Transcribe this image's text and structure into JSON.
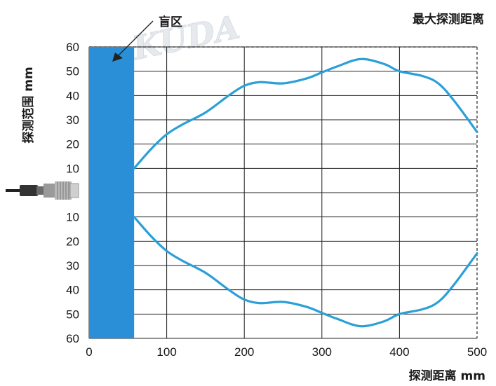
{
  "watermark": "KUDA",
  "colors": {
    "curve": "#2a9fd8",
    "blind_zone": "#2a8fd6",
    "grid": "#222222",
    "text": "#1a1a1a"
  },
  "icons": {
    "sensor": "sensor-probe-icon"
  },
  "chart_data": {
    "type": "line",
    "title": "最大探测距离",
    "xlabel": "探测距离 mm",
    "ylabel": "探测范围 mm",
    "blind_zone_label": "盲区",
    "blind_zone": [
      0,
      58
    ],
    "xlim": [
      0,
      500
    ],
    "ylim": [
      -60,
      60
    ],
    "grid": true,
    "x_ticks": [
      "0",
      "100",
      "200",
      "300",
      "400",
      "500"
    ],
    "y_ticks_upper": [
      "60",
      "50",
      "40",
      "30",
      "20",
      "10"
    ],
    "y_ticks_lower": [
      "10",
      "20",
      "30",
      "40",
      "50",
      "60"
    ],
    "series": [
      {
        "x": [
          58,
          80,
          100,
          120,
          150,
          180,
          200,
          220,
          250,
          280,
          300,
          320,
          350,
          380,
          400,
          430,
          450,
          470,
          500
        ],
        "y": [
          10,
          18,
          24,
          28,
          33,
          40,
          44,
          45.5,
          45,
          47,
          49.5,
          52,
          55,
          53,
          50,
          48,
          45,
          38,
          25
        ]
      },
      {
        "x": [
          58,
          80,
          100,
          120,
          150,
          180,
          200,
          220,
          250,
          280,
          300,
          320,
          350,
          380,
          400,
          430,
          450,
          470,
          500
        ],
        "y": [
          -10,
          -18,
          -24,
          -28,
          -33,
          -40,
          -44,
          -45.5,
          -45,
          -47,
          -49.5,
          -52,
          -55,
          -53,
          -50,
          -48,
          -45,
          -38,
          -25
        ]
      }
    ]
  }
}
